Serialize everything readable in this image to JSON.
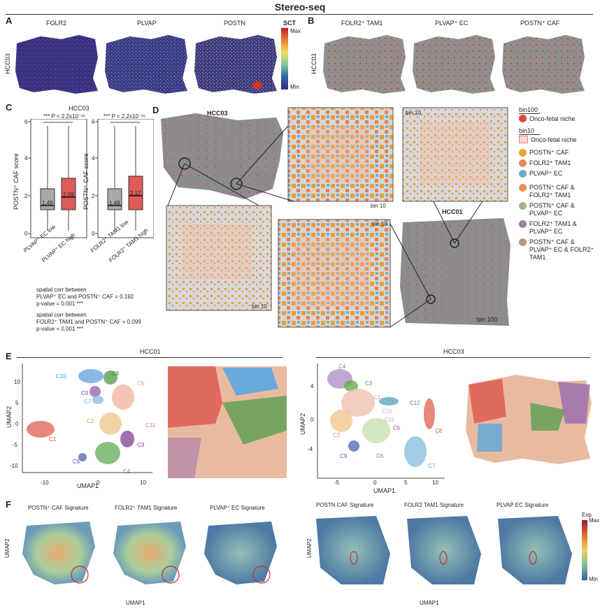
{
  "title": "Stereo-seq",
  "panels": {
    "A": {
      "label": "A",
      "genes": [
        "FOLR2",
        "PLVAP",
        "POSTN"
      ],
      "sample": "HCC03",
      "colorbar": {
        "title": "SCT",
        "max": "Max",
        "min": "Min"
      }
    },
    "B": {
      "label": "B",
      "cells": [
        "FOLR2⁺ TAM1",
        "PLVAP⁺ EC",
        "POSTN⁺ CAF"
      ],
      "sample": "HCC03"
    },
    "C": {
      "label": "C",
      "sample": "HCC03",
      "ylabel": "POSTN⁺ CAF score",
      "stats_left": "*** P < 2.2x10⁻¹⁶",
      "stats_right": "*** P < 2.2x10⁻¹⁶",
      "left_groups": [
        "PLVAP⁺ EC low",
        "PLVAP⁺ EC high"
      ],
      "right_groups": [
        "FOLR2⁺ TAM1 low",
        "FOLR2⁺ TAM1 high"
      ],
      "yticks": [
        "0",
        "2",
        "4",
        "6"
      ],
      "medians": {
        "l1": "1.49",
        "l2": "2.08",
        "r1": "1.48",
        "r2": "2.17"
      },
      "corr1_a": "spatial corr between",
      "corr1_b": "PLVAP⁺ EC and POSTN⁺ CAF = 0.192",
      "corr1_p": "p-value = 0.001 ***",
      "corr2_a": "spatial corr between",
      "corr2_b": "FOLR2⁺ TAM1 and POSTN⁺ CAF = 0.099",
      "corr2_p": "p-value = 0.001 ***"
    },
    "D": {
      "label": "D",
      "sample1": "HCC03",
      "sample2": "HCC01",
      "bin100": "bin 100",
      "bin10": "bin 10",
      "legend": {
        "h1": "bin100",
        "niche100": "Onco-fetal niche",
        "h2": "bin10",
        "niche10": "Onco-fetal niche",
        "items": [
          {
            "label": "POSTN⁺ CAF",
            "color": "#e8a23a"
          },
          {
            "label": "FOLR2⁺ TAM1",
            "color": "#e58a62"
          },
          {
            "label": "PLVAP⁺ EC",
            "color": "#67aec4"
          },
          {
            "label": "POSTN⁺ CAF & FOLR2⁺ TAM1",
            "color": "#e8905a"
          },
          {
            "label": "POSTN⁺ CAF & PLVAP⁺ EC",
            "color": "#9cb98b"
          },
          {
            "label": "FOLR2⁺ TAM1 & PLVAP⁺ EC",
            "color": "#9b7fa8"
          },
          {
            "label": "POSTN⁺ CAF & PLVAP⁺ EC & FOLR2⁺ TAM1",
            "color": "#b89878"
          }
        ]
      }
    },
    "E": {
      "label": "E",
      "sample1": "HCC01",
      "sample2": "HCC03",
      "xlabel": "UMAP1",
      "ylabel": "UMAP2",
      "left_clusters": [
        "C10",
        "C8",
        "C9",
        "C6",
        "C7",
        "C2",
        "C11",
        "C1",
        "C3",
        "C5",
        "C4"
      ],
      "right_clusters": [
        "C4",
        "C3",
        "C1",
        "C12",
        "C10",
        "C11",
        "C5",
        "C8",
        "C2",
        "C9",
        "C6",
        "C7"
      ],
      "left_xticks": [
        "-10",
        "0",
        "10"
      ],
      "left_yticks": [
        "10",
        "5",
        "0",
        "-5",
        "-10"
      ],
      "right_xticks": [
        "-5",
        "0",
        "5",
        "10"
      ],
      "right_yticks": [
        "4",
        "0",
        "-4"
      ]
    },
    "F": {
      "label": "F",
      "left_titles": [
        "POSTN⁺ CAF Signature",
        "FOLR2⁺ TAM1 Signature",
        "PLVAP⁺ EC Signature"
      ],
      "right_titles": [
        "POSTN CAF Signature",
        "FOLR2 TAM1 Signature",
        "PLVAP EC Signature"
      ],
      "xlabel": "UMAP1",
      "ylabel": "UMAP2",
      "colorbar": {
        "title": "Exp",
        "max": "Max",
        "min": "Min"
      }
    }
  }
}
